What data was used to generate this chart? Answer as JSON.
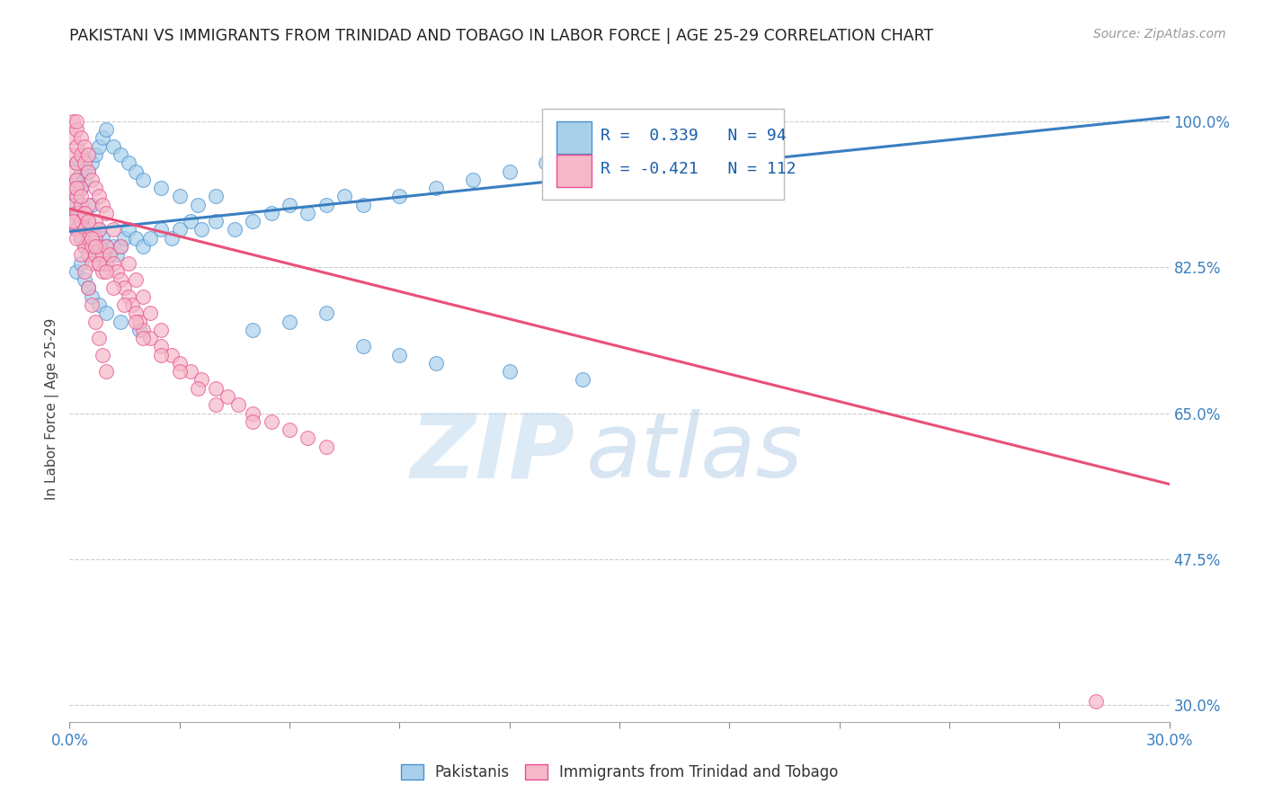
{
  "title": "PAKISTANI VS IMMIGRANTS FROM TRINIDAD AND TOBAGO IN LABOR FORCE | AGE 25-29 CORRELATION CHART",
  "source": "Source: ZipAtlas.com",
  "ylabel_label": "In Labor Force | Age 25-29",
  "blue_R": 0.339,
  "blue_N": 94,
  "pink_R": -0.421,
  "pink_N": 112,
  "legend_labels": [
    "Pakistanis",
    "Immigrants from Trinidad and Tobago"
  ],
  "blue_color": "#a8d0eb",
  "pink_color": "#f4b8c8",
  "blue_edge_color": "#4a90d0",
  "pink_edge_color": "#e85090",
  "blue_line_color": "#3a7fc1",
  "pink_line_color": "#e8507a",
  "legend_R_color": "#1a5fa8",
  "watermark_zip": "ZIP",
  "watermark_atlas": "atlas",
  "xmin": 0.0,
  "xmax": 0.3,
  "ymin": 0.28,
  "ymax": 1.03,
  "blue_line_x0": 0.0,
  "blue_line_y0": 0.868,
  "blue_line_x1": 0.3,
  "blue_line_y1": 1.005,
  "pink_line_x0": 0.0,
  "pink_line_y0": 0.895,
  "pink_line_x1": 0.3,
  "pink_line_y1": 0.565,
  "ytick_vals": [
    0.3,
    0.475,
    0.65,
    0.825,
    1.0
  ],
  "ytick_labels": [
    "30.0%",
    "47.5%",
    "65.0%",
    "82.5%",
    "100.0%"
  ],
  "xtick_labels_shown": [
    "0.0%",
    "30.0%"
  ],
  "blue_scatter_x": [
    0.001,
    0.001,
    0.001,
    0.002,
    0.002,
    0.002,
    0.002,
    0.002,
    0.003,
    0.003,
    0.003,
    0.003,
    0.004,
    0.004,
    0.004,
    0.005,
    0.005,
    0.005,
    0.006,
    0.006,
    0.006,
    0.007,
    0.007,
    0.008,
    0.008,
    0.009,
    0.009,
    0.01,
    0.01,
    0.011,
    0.012,
    0.013,
    0.014,
    0.015,
    0.016,
    0.018,
    0.02,
    0.022,
    0.025,
    0.028,
    0.03,
    0.033,
    0.036,
    0.04,
    0.045,
    0.05,
    0.055,
    0.06,
    0.065,
    0.07,
    0.075,
    0.08,
    0.09,
    0.1,
    0.11,
    0.12,
    0.13,
    0.002,
    0.003,
    0.004,
    0.005,
    0.006,
    0.007,
    0.008,
    0.009,
    0.01,
    0.012,
    0.014,
    0.016,
    0.018,
    0.02,
    0.025,
    0.03,
    0.035,
    0.04,
    0.05,
    0.06,
    0.07,
    0.08,
    0.09,
    0.1,
    0.12,
    0.14,
    0.002,
    0.003,
    0.004,
    0.005,
    0.006,
    0.008,
    0.01,
    0.014,
    0.019
  ],
  "blue_scatter_y": [
    0.88,
    0.9,
    0.92,
    0.87,
    0.89,
    0.91,
    0.93,
    0.95,
    0.86,
    0.88,
    0.9,
    0.92,
    0.85,
    0.87,
    0.89,
    0.84,
    0.86,
    0.88,
    0.85,
    0.87,
    0.9,
    0.84,
    0.86,
    0.85,
    0.87,
    0.84,
    0.86,
    0.83,
    0.85,
    0.84,
    0.85,
    0.84,
    0.85,
    0.86,
    0.87,
    0.86,
    0.85,
    0.86,
    0.87,
    0.86,
    0.87,
    0.88,
    0.87,
    0.88,
    0.87,
    0.88,
    0.89,
    0.9,
    0.89,
    0.9,
    0.91,
    0.9,
    0.91,
    0.92,
    0.93,
    0.94,
    0.95,
    0.95,
    0.94,
    0.93,
    0.94,
    0.95,
    0.96,
    0.97,
    0.98,
    0.99,
    0.97,
    0.96,
    0.95,
    0.94,
    0.93,
    0.92,
    0.91,
    0.9,
    0.91,
    0.75,
    0.76,
    0.77,
    0.73,
    0.72,
    0.71,
    0.7,
    0.69,
    0.82,
    0.83,
    0.81,
    0.8,
    0.79,
    0.78,
    0.77,
    0.76,
    0.75
  ],
  "pink_scatter_x": [
    0.001,
    0.001,
    0.001,
    0.001,
    0.001,
    0.002,
    0.002,
    0.002,
    0.002,
    0.002,
    0.003,
    0.003,
    0.003,
    0.003,
    0.004,
    0.004,
    0.004,
    0.005,
    0.005,
    0.005,
    0.006,
    0.006,
    0.006,
    0.007,
    0.007,
    0.007,
    0.008,
    0.008,
    0.008,
    0.009,
    0.009,
    0.01,
    0.01,
    0.011,
    0.012,
    0.013,
    0.014,
    0.015,
    0.016,
    0.017,
    0.018,
    0.019,
    0.02,
    0.022,
    0.025,
    0.028,
    0.03,
    0.033,
    0.036,
    0.04,
    0.043,
    0.046,
    0.05,
    0.055,
    0.06,
    0.065,
    0.07,
    0.001,
    0.001,
    0.002,
    0.002,
    0.002,
    0.003,
    0.003,
    0.004,
    0.004,
    0.005,
    0.005,
    0.006,
    0.007,
    0.008,
    0.009,
    0.01,
    0.012,
    0.014,
    0.016,
    0.018,
    0.02,
    0.022,
    0.025,
    0.002,
    0.003,
    0.004,
    0.005,
    0.006,
    0.007,
    0.008,
    0.01,
    0.012,
    0.015,
    0.018,
    0.02,
    0.025,
    0.03,
    0.035,
    0.04,
    0.05,
    0.001,
    0.002,
    0.003,
    0.004,
    0.005,
    0.006,
    0.007,
    0.008,
    0.009,
    0.01,
    0.28
  ],
  "pink_scatter_y": [
    0.88,
    0.9,
    0.92,
    0.94,
    0.96,
    0.87,
    0.89,
    0.91,
    0.93,
    0.95,
    0.86,
    0.88,
    0.9,
    0.92,
    0.85,
    0.87,
    0.89,
    0.84,
    0.86,
    0.9,
    0.83,
    0.85,
    0.87,
    0.84,
    0.86,
    0.88,
    0.83,
    0.85,
    0.87,
    0.82,
    0.84,
    0.83,
    0.85,
    0.84,
    0.83,
    0.82,
    0.81,
    0.8,
    0.79,
    0.78,
    0.77,
    0.76,
    0.75,
    0.74,
    0.73,
    0.72,
    0.71,
    0.7,
    0.69,
    0.68,
    0.67,
    0.66,
    0.65,
    0.64,
    0.63,
    0.62,
    0.61,
    0.98,
    1.0,
    0.97,
    0.99,
    1.0,
    0.96,
    0.98,
    0.95,
    0.97,
    0.94,
    0.96,
    0.93,
    0.92,
    0.91,
    0.9,
    0.89,
    0.87,
    0.85,
    0.83,
    0.81,
    0.79,
    0.77,
    0.75,
    0.92,
    0.91,
    0.89,
    0.88,
    0.86,
    0.85,
    0.83,
    0.82,
    0.8,
    0.78,
    0.76,
    0.74,
    0.72,
    0.7,
    0.68,
    0.66,
    0.64,
    0.88,
    0.86,
    0.84,
    0.82,
    0.8,
    0.78,
    0.76,
    0.74,
    0.72,
    0.7,
    0.305
  ]
}
